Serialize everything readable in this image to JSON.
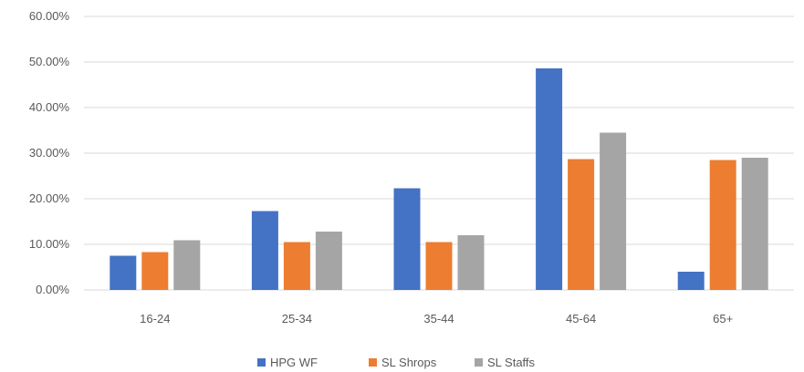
{
  "chart_data": {
    "type": "bar",
    "title": "",
    "xlabel": "",
    "ylabel": "",
    "categories": [
      "16-24",
      "25-34",
      "35-44",
      "45-64",
      "65+"
    ],
    "series": [
      {
        "name": "HPG WF",
        "color": "#4472C4",
        "values": [
          7.5,
          17.3,
          22.3,
          48.6,
          4.0
        ]
      },
      {
        "name": "SL Shrops",
        "color": "#ED7D31",
        "values": [
          8.3,
          10.5,
          10.5,
          28.7,
          28.5
        ]
      },
      {
        "name": "SL Staffs",
        "color": "#A5A5A5",
        "values": [
          10.9,
          12.8,
          12.0,
          34.5,
          29.0
        ]
      }
    ],
    "ylim": [
      0,
      60
    ],
    "yticks": [
      0,
      10,
      20,
      30,
      40,
      50,
      60
    ],
    "ytick_labels": [
      "0.00%",
      "10.00%",
      "20.00%",
      "30.00%",
      "40.00%",
      "50.00%",
      "60.00%"
    ],
    "grid": true,
    "legend_position": "bottom",
    "gridline_color": "#D9D9D9"
  }
}
